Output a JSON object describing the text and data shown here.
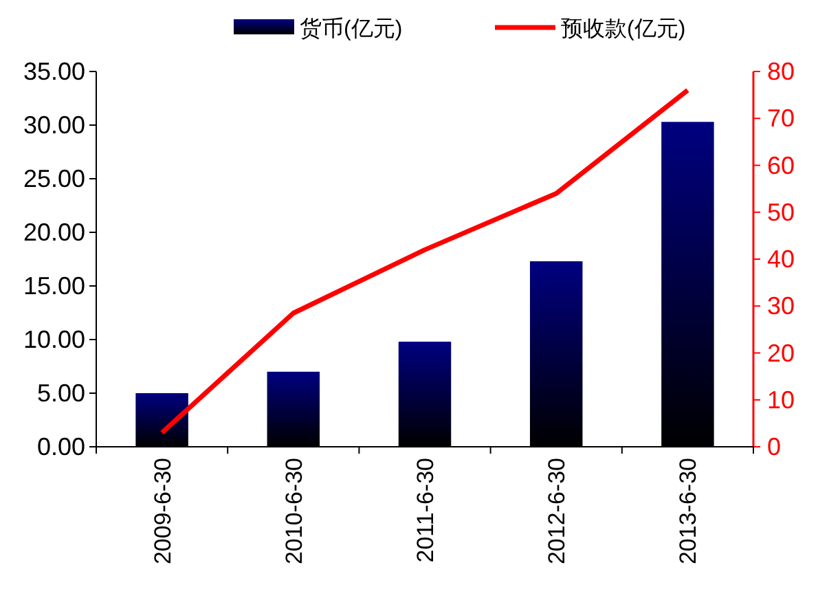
{
  "chart_data": {
    "type": "bar",
    "categories": [
      "2009-6-30",
      "2010-6-30",
      "2011-6-30",
      "2012-6-30",
      "2013-6-30"
    ],
    "series": [
      {
        "name": "货币(亿元)",
        "color": "#000080",
        "values": [
          5.0,
          7.0,
          9.8,
          17.3,
          30.3
        ]
      },
      {
        "name": "预收款(亿元)",
        "type": "line",
        "axis": "y2",
        "color": "#ff0000",
        "values": [
          3,
          28.5,
          42,
          54,
          76
        ]
      }
    ],
    "ylim": [
      0,
      35
    ],
    "yticks": [
      {
        "value": 0,
        "label": "0.00"
      },
      {
        "value": 5,
        "label": "5.00"
      },
      {
        "value": 10,
        "label": "10.00"
      },
      {
        "value": 15,
        "label": "15.00"
      },
      {
        "value": 20,
        "label": "20.00"
      },
      {
        "value": 25,
        "label": "25.00"
      },
      {
        "value": 30,
        "label": "30.00"
      },
      {
        "value": 35,
        "label": "35.00"
      }
    ],
    "y2lim": [
      0,
      80
    ],
    "y2ticks": [
      0,
      10,
      20,
      30,
      40,
      50,
      60,
      70,
      80
    ],
    "legend": "top",
    "grid": false
  }
}
